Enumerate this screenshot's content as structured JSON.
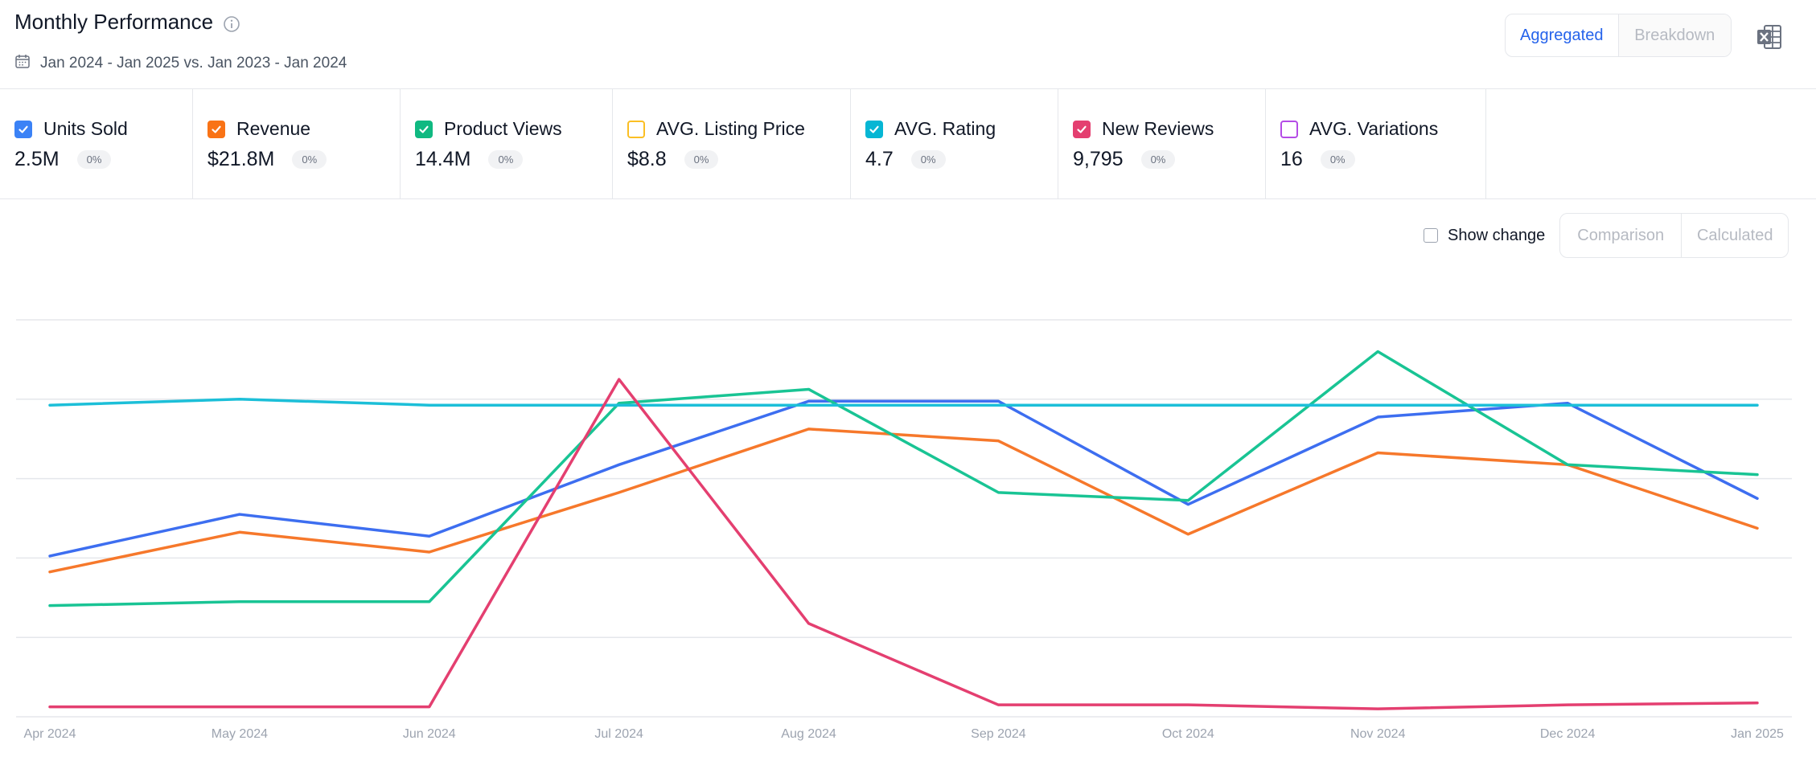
{
  "header": {
    "title": "Monthly Performance",
    "date_range": "Jan 2024 - Jan 2025 vs. Jan 2023 - Jan 2024",
    "view_toggle": {
      "aggregated": "Aggregated",
      "breakdown": "Breakdown",
      "active": "Aggregated"
    }
  },
  "metrics": [
    {
      "label": "Units Sold",
      "value": "2.5M",
      "change": "0%",
      "color": "#3b82f6",
      "checked": true
    },
    {
      "label": "Revenue",
      "value": "$21.8M",
      "change": "0%",
      "color": "#f97316",
      "checked": true
    },
    {
      "label": "Product Views",
      "value": "14.4M",
      "change": "0%",
      "color": "#10b981",
      "checked": true
    },
    {
      "label": "AVG. Listing Price",
      "value": "$8.8",
      "change": "0%",
      "color": "#fbbf24",
      "checked": false
    },
    {
      "label": "AVG. Rating",
      "value": "4.7",
      "change": "0%",
      "color": "#06b6d4",
      "checked": true
    },
    {
      "label": "New Reviews",
      "value": "9,795",
      "change": "0%",
      "color": "#e43f70",
      "checked": true
    },
    {
      "label": "AVG. Variations",
      "value": "16",
      "change": "0%",
      "color": "#b44ce6",
      "checked": false
    }
  ],
  "controls": {
    "show_change": "Show change",
    "show_change_checked": false,
    "comparison": "Comparison",
    "calculated": "Calculated"
  },
  "chart_data": {
    "type": "line",
    "x": [
      "Apr 2024",
      "May 2024",
      "Jun 2024",
      "Jul 2024",
      "Aug 2024",
      "Sep 2024",
      "Oct 2024",
      "Nov 2024",
      "Dec 2024",
      "Jan 2025"
    ],
    "ylim": [
      0,
      100
    ],
    "grid": true,
    "series": [
      {
        "name": "Units Sold",
        "color": "#3d6ef0",
        "values": [
          40.5,
          51,
          45.5,
          63.5,
          79.5,
          79.5,
          53.5,
          75.5,
          79,
          55
        ]
      },
      {
        "name": "Revenue",
        "color": "#f6782b",
        "values": [
          36.5,
          46.5,
          41.5,
          56.5,
          72.5,
          69.5,
          46,
          66.5,
          63.5,
          47.5
        ]
      },
      {
        "name": "Product Views",
        "color": "#19c494",
        "values": [
          28,
          29,
          29,
          79,
          82.5,
          56.5,
          54.5,
          92,
          63.5,
          61
        ]
      },
      {
        "name": "AVG. Rating",
        "color": "#1cbfd8",
        "values": [
          78.5,
          80,
          78.5,
          78.5,
          78.5,
          78.5,
          78.5,
          78.5,
          78.5,
          78.5
        ]
      },
      {
        "name": "New Reviews",
        "color": "#e43f70",
        "values": [
          2.5,
          2.5,
          2.5,
          85,
          23.5,
          3,
          3,
          2,
          3,
          3.5
        ]
      }
    ]
  }
}
